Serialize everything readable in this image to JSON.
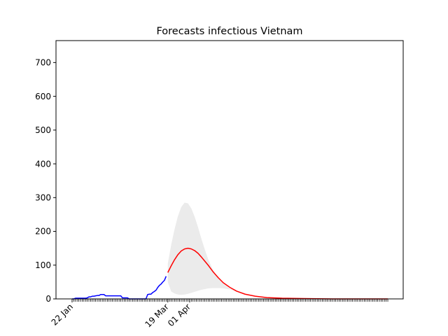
{
  "chart_data": {
    "type": "line",
    "title": "Forecasts infectious Vietnam",
    "xlabel": "",
    "ylabel": "",
    "x_axis": {
      "type": "date",
      "start": "2020-01-22",
      "end": "2020-07-28",
      "labeled_ticks": [
        {
          "date": "2020-01-22",
          "label": "22 Jan"
        },
        {
          "date": "2020-03-19",
          "label": "19 Mar"
        },
        {
          "date": "2020-04-01",
          "label": "01 Apr"
        }
      ],
      "minor_ticks": "daily"
    },
    "ylim": [
      0,
      765
    ],
    "yticks": [
      0,
      100,
      200,
      300,
      400,
      500,
      600,
      700
    ],
    "grid": false,
    "series": [
      {
        "role": "observed",
        "color": "#0000ff",
        "points": [
          [
            "2020-01-22",
            0
          ],
          [
            "2020-01-23",
            0
          ],
          [
            "2020-01-24",
            2
          ],
          [
            "2020-01-25",
            2
          ],
          [
            "2020-01-26",
            2
          ],
          [
            "2020-01-27",
            2
          ],
          [
            "2020-01-28",
            2
          ],
          [
            "2020-01-29",
            2
          ],
          [
            "2020-01-30",
            2
          ],
          [
            "2020-01-31",
            3
          ],
          [
            "2020-02-01",
            6
          ],
          [
            "2020-02-02",
            6
          ],
          [
            "2020-02-03",
            8
          ],
          [
            "2020-02-04",
            8
          ],
          [
            "2020-02-05",
            9
          ],
          [
            "2020-02-06",
            10
          ],
          [
            "2020-02-07",
            10
          ],
          [
            "2020-02-08",
            13
          ],
          [
            "2020-02-09",
            13
          ],
          [
            "2020-02-10",
            13
          ],
          [
            "2020-02-11",
            9
          ],
          [
            "2020-02-12",
            9
          ],
          [
            "2020-02-13",
            9
          ],
          [
            "2020-02-14",
            9
          ],
          [
            "2020-02-15",
            9
          ],
          [
            "2020-02-16",
            9
          ],
          [
            "2020-02-17",
            9
          ],
          [
            "2020-02-18",
            9
          ],
          [
            "2020-02-19",
            9
          ],
          [
            "2020-02-20",
            9
          ],
          [
            "2020-02-21",
            3
          ],
          [
            "2020-02-22",
            3
          ],
          [
            "2020-02-23",
            3
          ],
          [
            "2020-02-24",
            3
          ],
          [
            "2020-02-25",
            0
          ],
          [
            "2020-02-26",
            0
          ],
          [
            "2020-02-27",
            0
          ],
          [
            "2020-02-28",
            0
          ],
          [
            "2020-02-29",
            0
          ],
          [
            "2020-03-01",
            0
          ],
          [
            "2020-03-02",
            0
          ],
          [
            "2020-03-03",
            0
          ],
          [
            "2020-03-04",
            0
          ],
          [
            "2020-03-05",
            0
          ],
          [
            "2020-03-06",
            0
          ],
          [
            "2020-03-07",
            13
          ],
          [
            "2020-03-08",
            14
          ],
          [
            "2020-03-09",
            14
          ],
          [
            "2020-03-10",
            19
          ],
          [
            "2020-03-11",
            22
          ],
          [
            "2020-03-12",
            26
          ],
          [
            "2020-03-13",
            34
          ],
          [
            "2020-03-14",
            40
          ],
          [
            "2020-03-15",
            44
          ],
          [
            "2020-03-16",
            50
          ],
          [
            "2020-03-17",
            55
          ],
          [
            "2020-03-18",
            67
          ]
        ]
      },
      {
        "role": "forecast",
        "color": "#ff0000",
        "points": [
          [
            "2020-03-19",
            78
          ],
          [
            "2020-03-21",
            98
          ],
          [
            "2020-03-23",
            116
          ],
          [
            "2020-03-25",
            131
          ],
          [
            "2020-03-27",
            142
          ],
          [
            "2020-03-29",
            148
          ],
          [
            "2020-03-31",
            150
          ],
          [
            "2020-04-02",
            148
          ],
          [
            "2020-04-04",
            143
          ],
          [
            "2020-04-06",
            135
          ],
          [
            "2020-04-08",
            124
          ],
          [
            "2020-04-10",
            112
          ],
          [
            "2020-04-12",
            100
          ],
          [
            "2020-04-15",
            80
          ],
          [
            "2020-04-18",
            63
          ],
          [
            "2020-04-21",
            48
          ],
          [
            "2020-04-25",
            34
          ],
          [
            "2020-04-29",
            23
          ],
          [
            "2020-05-04",
            14
          ],
          [
            "2020-05-10",
            8
          ],
          [
            "2020-05-17",
            4
          ],
          [
            "2020-05-26",
            2
          ],
          [
            "2020-06-08",
            1
          ],
          [
            "2020-06-25",
            0
          ],
          [
            "2020-07-28",
            0
          ]
        ]
      }
    ],
    "band": {
      "role": "forecast_interval",
      "color": "#ebebeb",
      "points": [
        [
          "2020-03-19",
          50,
          105
        ],
        [
          "2020-03-21",
          22,
          160
        ],
        [
          "2020-03-23",
          16,
          206
        ],
        [
          "2020-03-25",
          13,
          245
        ],
        [
          "2020-03-27",
          12,
          272
        ],
        [
          "2020-03-29",
          13,
          285
        ],
        [
          "2020-03-31",
          15,
          283
        ],
        [
          "2020-04-02",
          18,
          268
        ],
        [
          "2020-04-04",
          21,
          243
        ],
        [
          "2020-04-06",
          24,
          212
        ],
        [
          "2020-04-08",
          27,
          178
        ],
        [
          "2020-04-10",
          29,
          147
        ],
        [
          "2020-04-12",
          31,
          118
        ],
        [
          "2020-04-15",
          32,
          85
        ],
        [
          "2020-04-18",
          32,
          61
        ],
        [
          "2020-04-21",
          31,
          45
        ],
        [
          "2020-04-25",
          28,
          30
        ],
        [
          "2020-04-29",
          23,
          23
        ],
        [
          "2020-05-04",
          14,
          14
        ],
        [
          "2020-05-10",
          8,
          8
        ],
        [
          "2020-05-17",
          4,
          4
        ],
        [
          "2020-05-26",
          2,
          2
        ],
        [
          "2020-06-08",
          1,
          1
        ],
        [
          "2020-06-25",
          0,
          0
        ],
        [
          "2020-07-28",
          0,
          0
        ]
      ]
    }
  }
}
